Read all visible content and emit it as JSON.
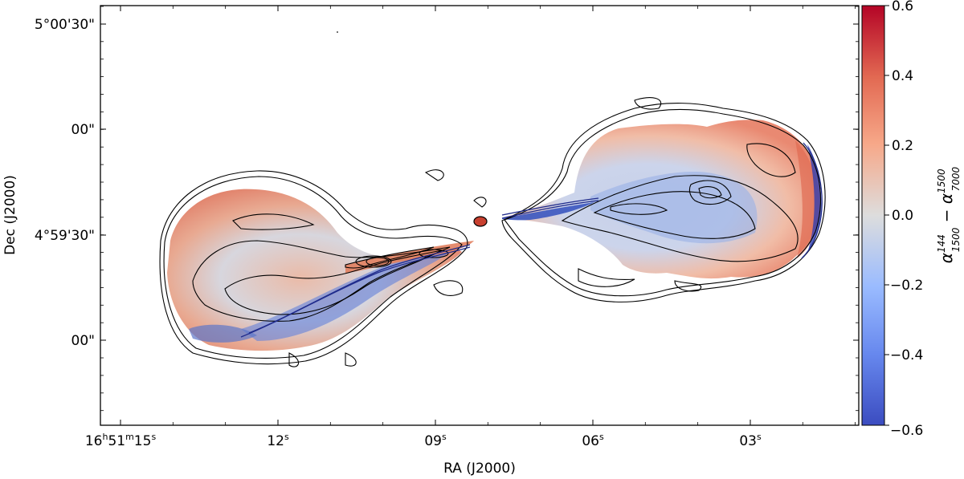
{
  "chart_data": {
    "type": "heatmap",
    "title": "",
    "xlabel": "RA (J2000)",
    "ylabel": "Dec (J2000)",
    "x_ticks": [
      {
        "h": "16",
        "m": "51",
        "s": "15",
        "label_kind": "full",
        "sec": 15
      },
      {
        "label": "12",
        "sup": "s",
        "sec": 12
      },
      {
        "label": "09",
        "sup": "s",
        "sec": 9
      },
      {
        "label": "06",
        "sup": "s",
        "sec": 6
      },
      {
        "label": "03",
        "sup": "s",
        "sec": 3
      }
    ],
    "x_first_tick": {
      "h": "16",
      "hs": "h",
      "m": "51",
      "ms": "m",
      "s": "15",
      "ss": "s"
    },
    "y_ticks": [
      {
        "label": "5°00'30\"",
        "arcsec": 30
      },
      {
        "label": "00\"",
        "arcsec": 0
      },
      {
        "label": "4°59'30\"",
        "arcsec": -30
      },
      {
        "label": "00\"",
        "arcsec": -60
      }
    ],
    "colorbar": {
      "colormap": "coolwarm",
      "range": [
        -0.6,
        0.6
      ],
      "ticks": [
        "0.6",
        "0.4",
        "0.2",
        "0.0",
        "−0.2",
        "−0.4",
        "−0.6"
      ],
      "label_main": "α",
      "label_sup1": "144",
      "label_sub1": "1500",
      "label_minus": " − α",
      "label_sup2": "1500",
      "label_sub2": "7000",
      "color_high": "#b40426",
      "color_mid": "#dddddd",
      "color_low": "#3b4cc0"
    },
    "description": "Spectral index difference map of a double-lobed radio galaxy with overlaid contours"
  }
}
